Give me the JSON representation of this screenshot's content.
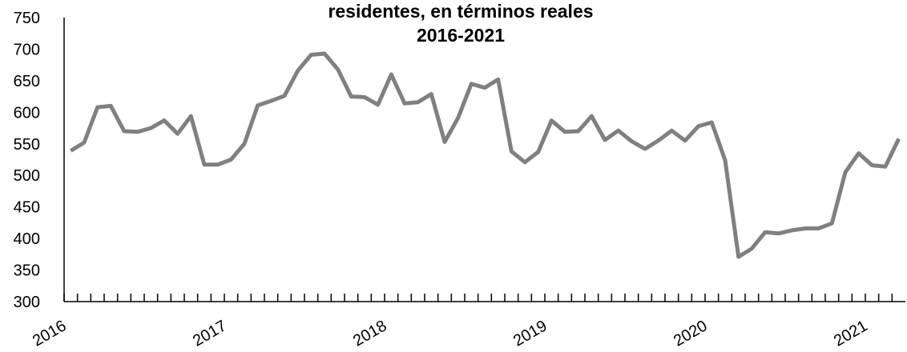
{
  "chart_data": {
    "type": "line",
    "title": [
      "residentes, en términos reales",
      "2016-2021"
    ],
    "categories": [
      "2016",
      null,
      null,
      null,
      null,
      null,
      null,
      null,
      null,
      null,
      null,
      null,
      "2017",
      null,
      null,
      null,
      null,
      null,
      null,
      null,
      null,
      null,
      null,
      null,
      "2018",
      null,
      null,
      null,
      null,
      null,
      null,
      null,
      null,
      null,
      null,
      null,
      "2019",
      null,
      null,
      null,
      null,
      null,
      null,
      null,
      null,
      null,
      null,
      null,
      "2020",
      null,
      null,
      null,
      null,
      null,
      null,
      null,
      null,
      null,
      null,
      null,
      "2021",
      null,
      null
    ],
    "series": [
      {
        "color": "#808080",
        "values": [
          539,
          552,
          608,
          610,
          570,
          569,
          575,
          587,
          566,
          594,
          517,
          517,
          525,
          550,
          611,
          618,
          626,
          666,
          691,
          693,
          668,
          625,
          624,
          612,
          660,
          614,
          616,
          629,
          553,
          591,
          645,
          639,
          652,
          538,
          521,
          537,
          587,
          569,
          570,
          594,
          556,
          571,
          554,
          542,
          555,
          571,
          555,
          578,
          584,
          524,
          371,
          384,
          410,
          408,
          413,
          416,
          416,
          424,
          505,
          535,
          516,
          514,
          558
        ]
      }
    ],
    "ylim": [
      300,
      750
    ],
    "yticks": [
      300,
      350,
      400,
      450,
      500,
      550,
      600,
      650,
      700,
      750
    ],
    "grid": false
  }
}
